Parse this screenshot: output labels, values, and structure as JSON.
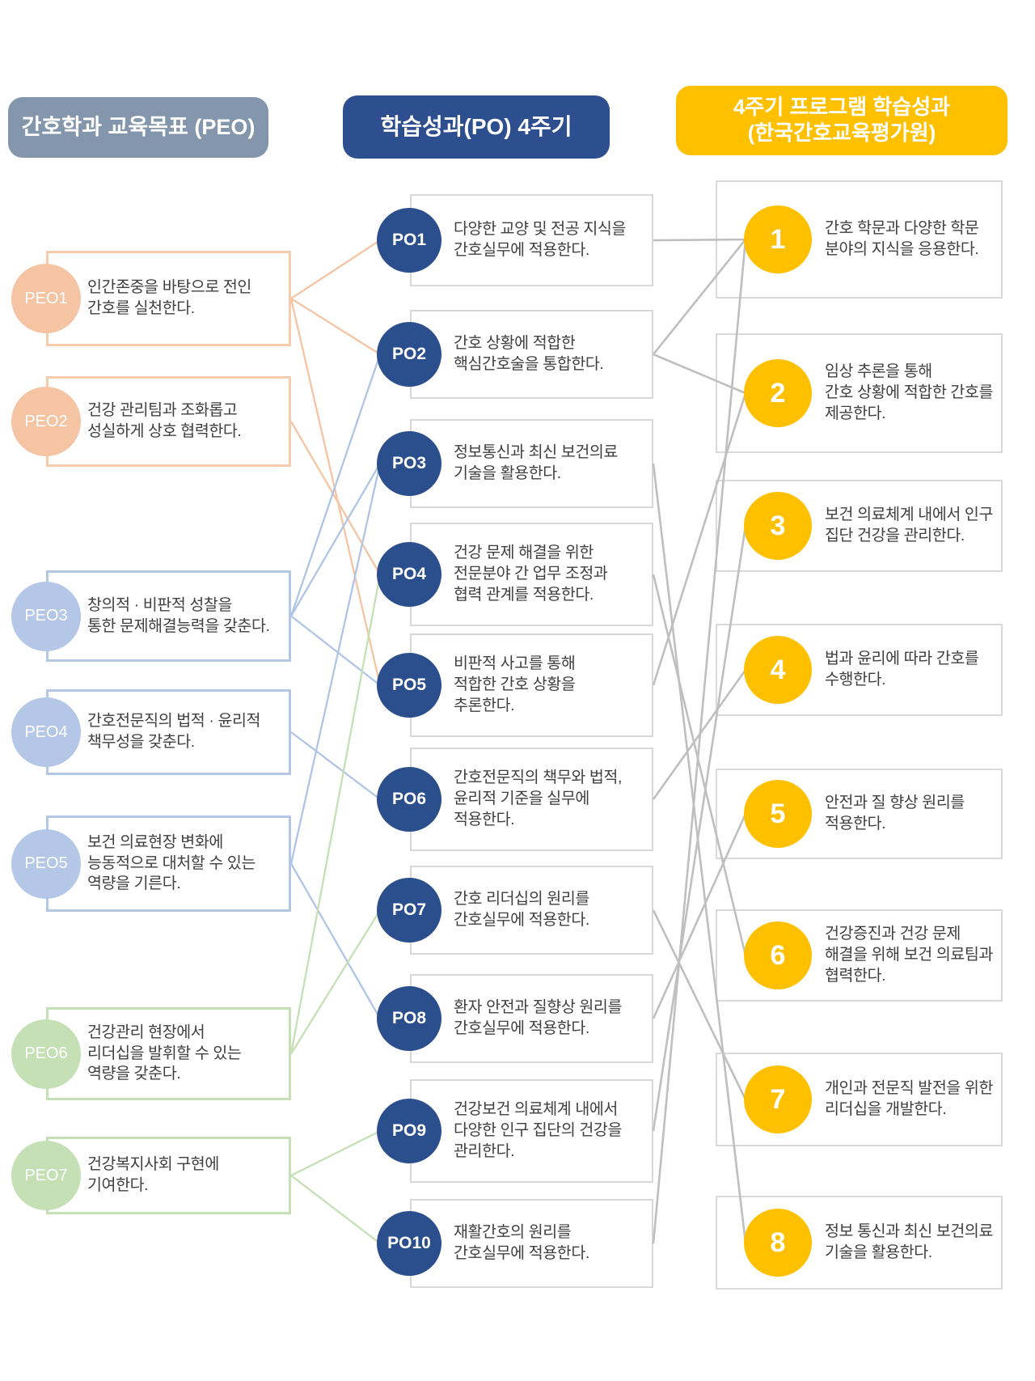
{
  "headers": {
    "peo": "간호학과 교육목표 (PEO)",
    "po": "학습성과(PO) 4주기",
    "plo": "4주기 프로그램 학습성과\n(한국간호교육평가원)"
  },
  "peo_items": [
    {
      "id": "PEO1",
      "group": "peach",
      "text": "인간존중을 바탕으로 전인\n간호를 실천한다."
    },
    {
      "id": "PEO2",
      "group": "peach",
      "text": "건강 관리팀과 조화롭고\n성실하게 상호 협력한다."
    },
    {
      "id": "PEO3",
      "group": "blue",
      "text": "창의적 · 비판적 성찰을\n통한 문제해결능력을 갖춘다."
    },
    {
      "id": "PEO4",
      "group": "blue",
      "text": "간호전문직의 법적 · 윤리적\n책무성을 갖춘다."
    },
    {
      "id": "PEO5",
      "group": "blue",
      "text": "보건 의료현장 변화에\n능동적으로 대처할 수 있는\n역량을 기른다."
    },
    {
      "id": "PEO6",
      "group": "green",
      "text": "건강관리 현장에서\n리더십을 발휘할 수 있는\n역량을 갖춘다."
    },
    {
      "id": "PEO7",
      "group": "green",
      "text": "건강복지사회 구현에\n기여한다."
    }
  ],
  "po_items": [
    {
      "id": "PO1",
      "text": "다양한 교양 및 전공 지식을\n간호실무에 적용한다."
    },
    {
      "id": "PO2",
      "text": "간호 상황에 적합한\n핵심간호술을 통합한다."
    },
    {
      "id": "PO3",
      "text": "정보통신과 최신 보건의료\n기술을 활용한다."
    },
    {
      "id": "PO4",
      "text": "건강 문제 해결을 위한\n전문분야 간 업무 조정과\n협력 관계를 적용한다."
    },
    {
      "id": "PO5",
      "text": "비판적 사고를 통해\n적합한 간호 상황을\n추론한다."
    },
    {
      "id": "PO6",
      "text": "간호전문직의 책무와 법적,\n윤리적 기준을 실무에\n적용한다."
    },
    {
      "id": "PO7",
      "text": "간호 리더십의 원리를\n간호실무에 적용한다."
    },
    {
      "id": "PO8",
      "text": "환자 안전과 질향상 원리를\n간호실무에 적용한다."
    },
    {
      "id": "PO9",
      "text": "건강보건 의료체계 내에서\n다양한 인구 집단의 건강을\n관리한다."
    },
    {
      "id": "PO10",
      "text": "재활간호의 원리를\n간호실무에 적용한다."
    }
  ],
  "plo_items": [
    {
      "id": "1",
      "text": "간호 학문과 다양한 학문\n분야의 지식을 응용한다."
    },
    {
      "id": "2",
      "text": "임상 추론을 통해\n간호 상황에 적합한 간호를\n제공한다."
    },
    {
      "id": "3",
      "text": "보건 의료체계 내에서 인구\n집단 건강을 관리한다."
    },
    {
      "id": "4",
      "text": "법과 윤리에 따라 간호를\n수행한다."
    },
    {
      "id": "5",
      "text": "안전과 질 향상 원리를\n적용한다."
    },
    {
      "id": "6",
      "text": "건강증진과 건강 문제\n해결을 위해 보건 의료팀과\n협력한다."
    },
    {
      "id": "7",
      "text": "개인과 전문직 발전을 위한\n리더십을 개발한다."
    },
    {
      "id": "8",
      "text": "정보 통신과 최신 보건의료\n기술을 활용한다."
    }
  ],
  "colors": {
    "peach": "#F5C4A2",
    "blue": "#AFC5E6",
    "green": "#C5E0B4",
    "connector_gray": "#BFBFBF",
    "po_navy": "#2B4E8C",
    "plo_gold": "#FFC000",
    "peo_slate": "#8496AB",
    "text": "#404040"
  },
  "connections": {
    "peo_to_po": [
      [
        "PEO1",
        "PO1"
      ],
      [
        "PEO1",
        "PO2"
      ],
      [
        "PEO1",
        "PO5"
      ],
      [
        "PEO2",
        "PO4"
      ],
      [
        "PEO3",
        "PO2"
      ],
      [
        "PEO3",
        "PO3"
      ],
      [
        "PEO3",
        "PO5"
      ],
      [
        "PEO4",
        "PO6"
      ],
      [
        "PEO5",
        "PO3"
      ],
      [
        "PEO5",
        "PO8"
      ],
      [
        "PEO6",
        "PO4"
      ],
      [
        "PEO6",
        "PO7"
      ],
      [
        "PEO7",
        "PO9"
      ],
      [
        "PEO7",
        "PO10"
      ]
    ],
    "po_to_plo": [
      [
        "PO1",
        "1"
      ],
      [
        "PO2",
        "1"
      ],
      [
        "PO2",
        "2"
      ],
      [
        "PO3",
        "8"
      ],
      [
        "PO4",
        "6"
      ],
      [
        "PO5",
        "2"
      ],
      [
        "PO6",
        "4"
      ],
      [
        "PO7",
        "7"
      ],
      [
        "PO8",
        "5"
      ],
      [
        "PO9",
        "3"
      ],
      [
        "PO10",
        "1"
      ]
    ]
  }
}
